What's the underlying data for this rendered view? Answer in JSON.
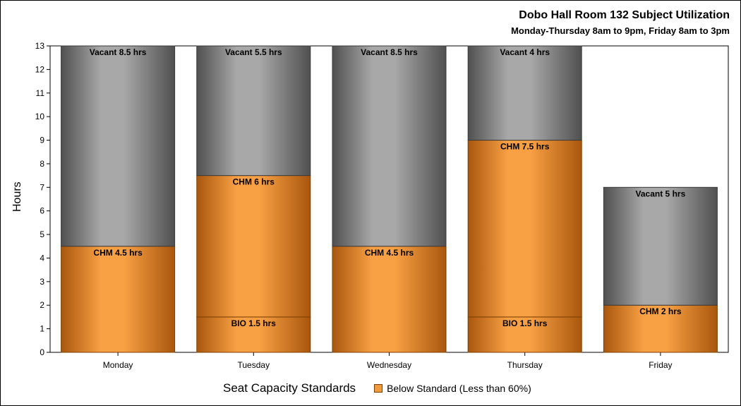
{
  "chart_data": {
    "type": "bar",
    "stacked": true,
    "title": "Dobo Hall Room 132 Subject Utilization",
    "subtitle": "Monday-Thursday 8am to 9pm, Friday 8am to 3pm",
    "ylabel": "Hours",
    "xlabel": "",
    "ylim": [
      0,
      13
    ],
    "yticks": [
      0,
      1,
      2,
      3,
      4,
      5,
      6,
      7,
      8,
      9,
      10,
      11,
      12,
      13
    ],
    "grid": false,
    "categories": [
      "Monday",
      "Tuesday",
      "Wednesday",
      "Thursday",
      "Friday"
    ],
    "segments": [
      [
        {
          "value": 4.5,
          "label": "CHM 4.5 hrs",
          "kind": "below"
        },
        {
          "value": 8.5,
          "label": "Vacant 8.5 hrs",
          "kind": "vacant"
        }
      ],
      [
        {
          "value": 1.5,
          "label": "BIO 1.5 hrs",
          "kind": "below"
        },
        {
          "value": 6,
          "label": "CHM 6 hrs",
          "kind": "below"
        },
        {
          "value": 5.5,
          "label": "Vacant 5.5 hrs",
          "kind": "vacant"
        }
      ],
      [
        {
          "value": 4.5,
          "label": "CHM 4.5 hrs",
          "kind": "below"
        },
        {
          "value": 8.5,
          "label": "Vacant 8.5 hrs",
          "kind": "vacant"
        }
      ],
      [
        {
          "value": 1.5,
          "label": "BIO 1.5 hrs",
          "kind": "below"
        },
        {
          "value": 7.5,
          "label": "CHM 7.5 hrs",
          "kind": "below"
        },
        {
          "value": 4,
          "label": "Vacant 4 hrs",
          "kind": "vacant"
        }
      ],
      [
        {
          "value": 2,
          "label": "CHM 2 hrs",
          "kind": "below"
        },
        {
          "value": 5,
          "label": "Vacant 5 hrs",
          "kind": "vacant"
        }
      ]
    ],
    "legend": {
      "title": "Seat Capacity Standards",
      "items": [
        {
          "label": "Below Standard (Less than 60%)",
          "color": "#f39a3c"
        }
      ],
      "placement": "bottom"
    },
    "colors": {
      "below_mid": "#f8a044",
      "below_edge": "#a9570e",
      "vacant_mid": "#a8a8a8",
      "vacant_edge": "#505050"
    }
  }
}
